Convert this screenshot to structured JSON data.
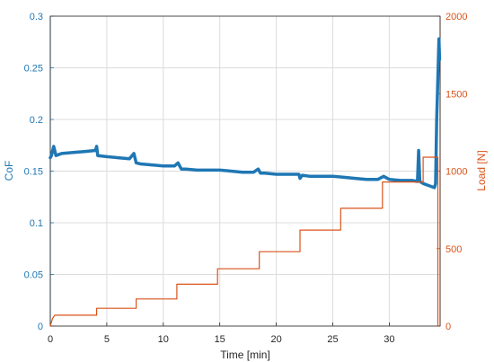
{
  "chart_data": {
    "type": "line",
    "grid": true,
    "xlabel": "Time [min]",
    "ylabel_left": "CoF",
    "ylabel_right": "Load [N]",
    "xlim": [
      0,
      34.5
    ],
    "ylim_left": [
      0,
      0.3
    ],
    "ylim_right": [
      0,
      2000
    ],
    "x_ticks": [
      "0",
      "5",
      "10",
      "15",
      "20",
      "25",
      "30"
    ],
    "x_tick_values": [
      0,
      5,
      10,
      15,
      20,
      25,
      30
    ],
    "y_left_ticks": [
      "0",
      "0.05",
      "0.1",
      "0.15",
      "0.2",
      "0.25",
      "0.3"
    ],
    "y_left_tick_values": [
      0,
      0.05,
      0.1,
      0.15,
      0.2,
      0.25,
      0.3
    ],
    "y_right_ticks": [
      "0",
      "500",
      "1000",
      "1500",
      "2000"
    ],
    "y_right_tick_values": [
      0,
      500,
      1000,
      1500,
      2000
    ],
    "colors": {
      "cof": "#1f77b4",
      "load": "#d95319",
      "grid": "#dcdcdc",
      "axis": "#262626"
    },
    "series": [
      {
        "axis": "left",
        "color": "#1f77b4",
        "points": [
          [
            0.0,
            0.163
          ],
          [
            0.1,
            0.165
          ],
          [
            0.3,
            0.174
          ],
          [
            0.5,
            0.165
          ],
          [
            1.0,
            0.167
          ],
          [
            2.0,
            0.168
          ],
          [
            3.0,
            0.169
          ],
          [
            4.0,
            0.17
          ],
          [
            4.1,
            0.174
          ],
          [
            4.2,
            0.165
          ],
          [
            5.0,
            0.164
          ],
          [
            6.0,
            0.163
          ],
          [
            7.0,
            0.162
          ],
          [
            7.4,
            0.167
          ],
          [
            7.6,
            0.158
          ],
          [
            8.0,
            0.157
          ],
          [
            9.0,
            0.156
          ],
          [
            10.0,
            0.155
          ],
          [
            11.0,
            0.155
          ],
          [
            11.3,
            0.158
          ],
          [
            11.6,
            0.152
          ],
          [
            12.0,
            0.152
          ],
          [
            13.0,
            0.151
          ],
          [
            14.0,
            0.151
          ],
          [
            15.0,
            0.151
          ],
          [
            16.0,
            0.15
          ],
          [
            17.0,
            0.149
          ],
          [
            18.0,
            0.149
          ],
          [
            18.4,
            0.152
          ],
          [
            18.6,
            0.148
          ],
          [
            19.0,
            0.148
          ],
          [
            20.0,
            0.147
          ],
          [
            21.0,
            0.147
          ],
          [
            22.0,
            0.147
          ],
          [
            22.1,
            0.143
          ],
          [
            22.3,
            0.146
          ],
          [
            23.0,
            0.145
          ],
          [
            24.0,
            0.145
          ],
          [
            25.0,
            0.145
          ],
          [
            26.0,
            0.144
          ],
          [
            27.0,
            0.143
          ],
          [
            28.0,
            0.142
          ],
          [
            29.0,
            0.142
          ],
          [
            29.5,
            0.145
          ],
          [
            30.0,
            0.142
          ],
          [
            31.0,
            0.141
          ],
          [
            32.0,
            0.141
          ],
          [
            32.5,
            0.14
          ],
          [
            32.6,
            0.17
          ],
          [
            32.7,
            0.14
          ],
          [
            33.0,
            0.138
          ],
          [
            33.5,
            0.136
          ],
          [
            34.0,
            0.134
          ],
          [
            34.1,
            0.138
          ],
          [
            34.2,
            0.2
          ],
          [
            34.3,
            0.24
          ],
          [
            34.4,
            0.278
          ],
          [
            34.45,
            0.258
          ]
        ]
      },
      {
        "axis": "right",
        "color": "#d95319",
        "points": [
          [
            0.0,
            0
          ],
          [
            0.2,
            50
          ],
          [
            0.4,
            70
          ],
          [
            4.1,
            70
          ],
          [
            4.1,
            115
          ],
          [
            7.6,
            115
          ],
          [
            7.6,
            175
          ],
          [
            11.2,
            175
          ],
          [
            11.2,
            270
          ],
          [
            14.8,
            270
          ],
          [
            14.8,
            370
          ],
          [
            18.5,
            370
          ],
          [
            18.5,
            480
          ],
          [
            22.1,
            480
          ],
          [
            22.1,
            620
          ],
          [
            25.7,
            620
          ],
          [
            25.7,
            760
          ],
          [
            29.4,
            760
          ],
          [
            29.4,
            930
          ],
          [
            33.0,
            930
          ],
          [
            33.0,
            1090
          ],
          [
            34.3,
            1090
          ],
          [
            34.3,
            0
          ]
        ]
      }
    ]
  }
}
